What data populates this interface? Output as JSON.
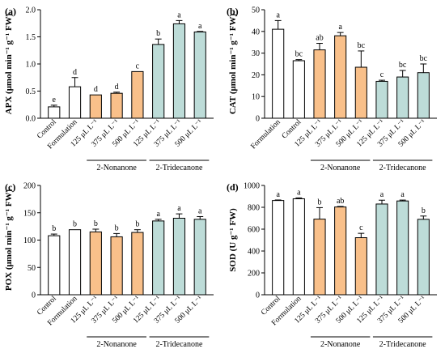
{
  "colors": {
    "control": "#ffffff",
    "nonanone": "#f9c08a",
    "tridecanone": "#bddcd8",
    "stroke": "#000000"
  },
  "chart_data": [
    {
      "type": "bar",
      "panel_label": "(a)",
      "ylabel": "APX (μmol min⁻¹ g⁻¹ FW)",
      "ylim": [
        0,
        2.0
      ],
      "yticks": [
        0,
        0.5,
        1.0,
        1.5,
        2.0
      ],
      "ytick_labels": [
        "0.0",
        "0.5",
        "1.0",
        "1.5",
        "2.0"
      ],
      "categories": [
        "Control",
        "Formulation",
        "125 μL L⁻¹",
        "375 μL L⁻¹",
        "500 μL L⁻¹",
        "125 μL L⁻¹",
        "375 μL L⁻¹",
        "500 μL L⁻¹"
      ],
      "groups": [
        "control",
        "control",
        "nonanone",
        "nonanone",
        "nonanone",
        "tridecanone",
        "tridecanone",
        "tridecanone"
      ],
      "values": [
        0.21,
        0.58,
        0.43,
        0.46,
        0.86,
        1.36,
        1.74,
        1.59
      ],
      "errors": [
        0.03,
        0.17,
        0.0,
        0.02,
        0.0,
        0.1,
        0.06,
        0.01
      ],
      "letters": [
        "e",
        "d",
        "d",
        "d",
        "c",
        "b",
        "a",
        "a"
      ],
      "group_labels": [
        "2-Nonanone",
        "2-Tridecanone"
      ]
    },
    {
      "type": "bar",
      "panel_label": "(b)",
      "ylabel": "CAT (μmol min⁻¹ g⁻¹ FW)",
      "ylim": [
        0,
        50
      ],
      "yticks": [
        0,
        10,
        20,
        30,
        40,
        50
      ],
      "ytick_labels": [
        "0",
        "10",
        "20",
        "30",
        "40",
        "50"
      ],
      "categories": [
        "Formulation",
        "Control",
        "125 μL L⁻¹",
        "375 μL L⁻¹",
        "500 μL L⁻¹",
        "125 μL L⁻¹",
        "375 μL L⁻¹",
        "500 μL L⁻¹"
      ],
      "groups": [
        "control",
        "control",
        "nonanone",
        "nonanone",
        "nonanone",
        "tridecanone",
        "tridecanone",
        "tridecanone"
      ],
      "values": [
        41,
        26.5,
        31.5,
        38,
        23.5,
        17,
        19,
        21
      ],
      "errors": [
        4,
        0.5,
        3,
        1.5,
        7.5,
        0.5,
        3,
        4
      ],
      "letters": [
        "a",
        "bc",
        "ab",
        "a",
        "bc",
        "c",
        "bc",
        "bc"
      ],
      "group_labels": [
        "2-Nonanone",
        "2-Tridecanone"
      ]
    },
    {
      "type": "bar",
      "panel_label": "(c)",
      "ylabel": "POX (μmol min⁻¹ g⁻¹ FW)",
      "ylim": [
        0,
        200
      ],
      "yticks": [
        0,
        50,
        100,
        150,
        200
      ],
      "ytick_labels": [
        "0",
        "50",
        "100",
        "150",
        "200"
      ],
      "categories": [
        "Control",
        "Formulation",
        "125 μL L⁻¹",
        "375 μL L⁻¹",
        "500 μL L⁻¹",
        "125 μL L⁻¹",
        "375 μL L⁻¹",
        "500 μL L⁻¹"
      ],
      "groups": [
        "control",
        "control",
        "nonanone",
        "nonanone",
        "nonanone",
        "tridecanone",
        "tridecanone",
        "tridecanone"
      ],
      "values": [
        108,
        119,
        115,
        106,
        114,
        135,
        140,
        138
      ],
      "errors": [
        3,
        0,
        5,
        6,
        5,
        3,
        8,
        5
      ],
      "letters": [
        "b",
        "b",
        "b",
        "b",
        "b",
        "a",
        "a",
        "a"
      ],
      "group_labels": [
        "2-Nonanone",
        "2-Tridecanone"
      ]
    },
    {
      "type": "bar",
      "panel_label": "(d)",
      "ylabel": "SOD (U g⁻¹ FW)",
      "ylim": [
        0,
        1000
      ],
      "yticks": [
        0,
        200,
        400,
        600,
        800,
        1000
      ],
      "ytick_labels": [
        "0",
        "200",
        "400",
        "600",
        "800",
        "1000"
      ],
      "categories": [
        "Control",
        "Formulation",
        "125 μL L⁻¹",
        "375 μL L⁻¹",
        "500 μL L⁻¹",
        "125 μL L⁻¹",
        "375 μL L⁻¹",
        "500 μL L⁻¹"
      ],
      "groups": [
        "control",
        "control",
        "nonanone",
        "nonanone",
        "nonanone",
        "tridecanone",
        "tridecanone",
        "tridecanone"
      ],
      "values": [
        862,
        878,
        692,
        803,
        522,
        830,
        858,
        690
      ],
      "errors": [
        5,
        8,
        105,
        5,
        40,
        35,
        8,
        30
      ],
      "letters": [
        "a",
        "a",
        "b",
        "ab",
        "c",
        "a",
        "a",
        "b"
      ],
      "group_labels": [
        "2-Nonanone",
        "2-Tridecanone"
      ]
    }
  ]
}
